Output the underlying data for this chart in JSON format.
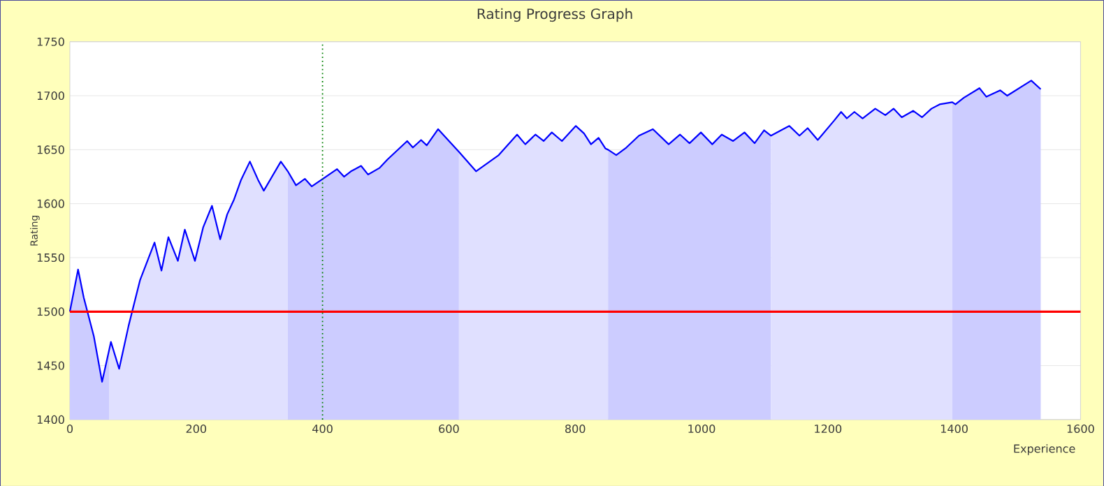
{
  "chart_data": {
    "type": "line",
    "title": "Rating Progress Graph",
    "xlabel": "Experience",
    "ylabel": "Rating",
    "xlim": [
      0,
      1600
    ],
    "ylim": [
      1400,
      1750
    ],
    "xticks": [
      0,
      200,
      400,
      600,
      800,
      1000,
      1200,
      1400,
      1600
    ],
    "yticks": [
      1400,
      1450,
      1500,
      1550,
      1600,
      1650,
      1700,
      1750
    ],
    "grid": "y",
    "marker": "none",
    "line_style": "solid",
    "ref_lines": [
      {
        "axis": "y",
        "value": 1500,
        "color": "#ff0000",
        "line_style": "solid"
      },
      {
        "axis": "x",
        "value": 400,
        "color": "#008000",
        "line_style": "dotted"
      }
    ],
    "series": [
      {
        "type": "area",
        "color": "#ccccff",
        "x": [
          0,
          13,
          22,
          38,
          51,
          62
        ],
        "values": [
          1500,
          1539,
          1513,
          1477,
          1435,
          1464
        ]
      },
      {
        "type": "area",
        "color": "#e0e0ff",
        "x": [
          62,
          65,
          78,
          93,
          111,
          134,
          145,
          156,
          171,
          182,
          198,
          211,
          225,
          238,
          249,
          260,
          271,
          285,
          298,
          307,
          334,
          345
        ],
        "values": [
          1464,
          1472,
          1447,
          1487,
          1529,
          1564,
          1538,
          1569,
          1547,
          1576,
          1547,
          1578,
          1598,
          1567,
          1590,
          1604,
          1622,
          1639,
          1622,
          1612,
          1639,
          1630
        ]
      },
      {
        "type": "area",
        "color": "#ccccff",
        "x": [
          345,
          358,
          372,
          383,
          423,
          434,
          445,
          461,
          472,
          490,
          503,
          534,
          543,
          556,
          565,
          583,
          616
        ],
        "values": [
          1630,
          1617,
          1623,
          1616,
          1632,
          1625,
          1630,
          1635,
          1627,
          1633,
          1641,
          1658,
          1652,
          1659,
          1654,
          1669,
          1648
        ]
      },
      {
        "type": "area",
        "color": "#e0e0ff",
        "x": [
          616,
          643,
          679,
          708,
          721,
          737,
          750,
          763,
          779,
          801,
          814,
          825,
          837,
          848,
          852
        ],
        "values": [
          1648,
          1630,
          1645,
          1664,
          1655,
          1664,
          1658,
          1666,
          1658,
          1672,
          1665,
          1655,
          1661,
          1651,
          1650
        ]
      },
      {
        "type": "area",
        "color": "#ccccff",
        "x": [
          852,
          865,
          881,
          901,
          923,
          948,
          966,
          981,
          999,
          1017,
          1032,
          1050,
          1068,
          1084,
          1099,
          1110
        ],
        "values": [
          1650,
          1645,
          1652,
          1663,
          1669,
          1655,
          1664,
          1656,
          1666,
          1655,
          1664,
          1658,
          1666,
          1656,
          1668,
          1663
        ]
      },
      {
        "type": "area",
        "color": "#e0e0ff",
        "x": [
          1110,
          1139,
          1155,
          1168,
          1184,
          1210,
          1221,
          1230,
          1242,
          1255,
          1275,
          1291,
          1304,
          1317,
          1335,
          1349,
          1364,
          1377,
          1397
        ],
        "values": [
          1663,
          1672,
          1663,
          1670,
          1659,
          1677,
          1685,
          1679,
          1685,
          1679,
          1688,
          1682,
          1688,
          1680,
          1686,
          1680,
          1688,
          1692,
          1694
        ]
      },
      {
        "type": "area",
        "color": "#ccccff",
        "x": [
          1397,
          1402,
          1415,
          1440,
          1451,
          1473,
          1484,
          1522,
          1537
        ],
        "values": [
          1694,
          1692,
          1698,
          1707,
          1699,
          1705,
          1700,
          1714,
          1706
        ]
      },
      {
        "color": "#0000ff",
        "x": [
          0,
          13,
          22,
          38,
          51,
          62,
          65,
          78,
          93,
          111,
          134,
          145,
          156,
          171,
          182,
          198,
          211,
          225,
          238,
          249,
          260,
          271,
          285,
          298,
          307,
          334,
          345,
          358,
          372,
          383,
          423,
          434,
          445,
          461,
          472,
          490,
          503,
          534,
          543,
          556,
          565,
          583,
          616,
          643,
          679,
          708,
          721,
          737,
          750,
          763,
          779,
          801,
          814,
          825,
          837,
          848,
          852,
          865,
          881,
          901,
          923,
          948,
          966,
          981,
          999,
          1017,
          1032,
          1050,
          1068,
          1084,
          1099,
          1110,
          1139,
          1155,
          1168,
          1184,
          1210,
          1221,
          1230,
          1242,
          1255,
          1275,
          1291,
          1304,
          1317,
          1335,
          1349,
          1364,
          1377,
          1397,
          1402,
          1415,
          1440,
          1451,
          1473,
          1484,
          1522,
          1537
        ],
        "values": [
          1500,
          1539,
          1513,
          1477,
          1435,
          1464,
          1472,
          1447,
          1487,
          1529,
          1564,
          1538,
          1569,
          1547,
          1576,
          1547,
          1578,
          1598,
          1567,
          1590,
          1604,
          1622,
          1639,
          1622,
          1612,
          1639,
          1630,
          1617,
          1623,
          1616,
          1632,
          1625,
          1630,
          1635,
          1627,
          1633,
          1641,
          1658,
          1652,
          1659,
          1654,
          1669,
          1648,
          1630,
          1645,
          1664,
          1655,
          1664,
          1658,
          1666,
          1658,
          1672,
          1665,
          1655,
          1661,
          1651,
          1650,
          1645,
          1652,
          1663,
          1669,
          1655,
          1664,
          1656,
          1666,
          1655,
          1664,
          1658,
          1666,
          1656,
          1668,
          1663,
          1672,
          1663,
          1670,
          1659,
          1677,
          1685,
          1679,
          1685,
          1679,
          1688,
          1682,
          1688,
          1680,
          1686,
          1680,
          1688,
          1692,
          1694,
          1692,
          1698,
          1707,
          1699,
          1705,
          1700,
          1714,
          1706
        ]
      }
    ]
  }
}
